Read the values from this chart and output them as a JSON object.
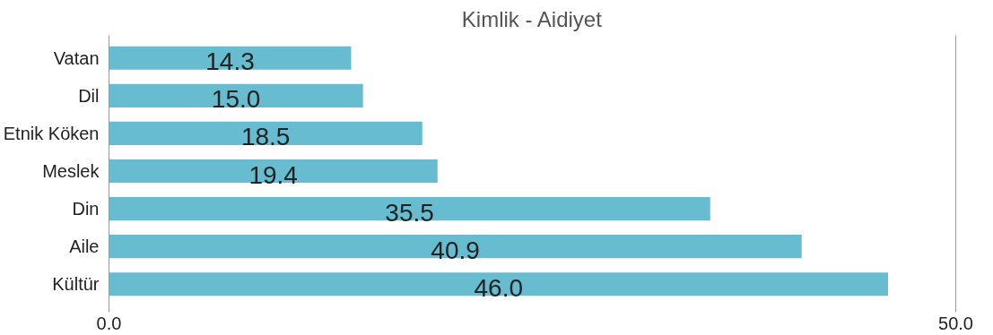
{
  "chart_data": {
    "type": "bar",
    "orientation": "horizontal",
    "title": "Kimlik - Aidiyet",
    "categories": [
      "Vatan",
      "Dil",
      "Etnik Köken",
      "Meslek",
      "Din",
      "Aile",
      "Kültür"
    ],
    "values": [
      14.3,
      15.0,
      18.5,
      19.4,
      35.5,
      40.9,
      46.0
    ],
    "value_labels": [
      "14.3",
      "15.0",
      "18.5",
      "19.4",
      "35.5",
      "40.9",
      "46.0"
    ],
    "color": "#67bcd0",
    "xlim": [
      0,
      50
    ],
    "xticks": [
      {
        "value": 0,
        "label": "0.0"
      },
      {
        "value": 50,
        "label": "50.0"
      }
    ]
  }
}
